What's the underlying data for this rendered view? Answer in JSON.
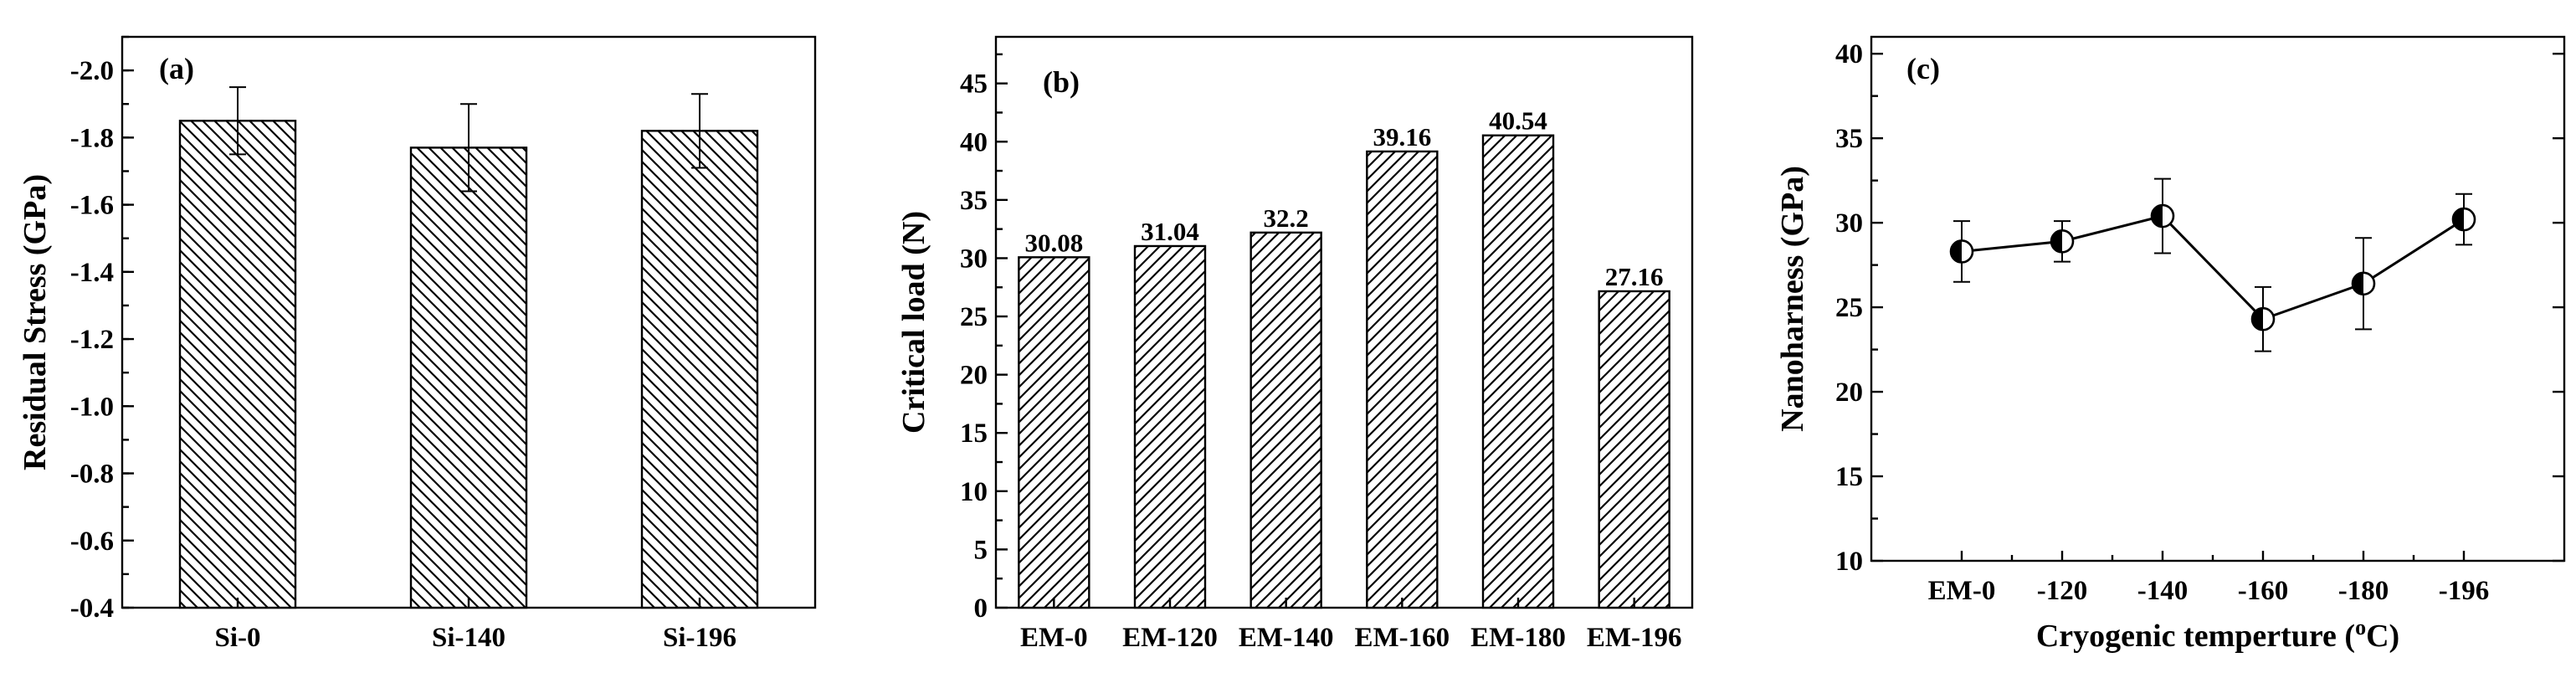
{
  "chart_data": [
    {
      "type": "bar",
      "panel_label": "(a)",
      "ylabel": "Residual Stress (GPa)",
      "xlabel": "",
      "categories": [
        "Si-0",
        "Si-140",
        "Si-196"
      ],
      "values": [
        -1.85,
        -1.77,
        -1.82
      ],
      "errors": [
        0.1,
        0.13,
        0.11
      ],
      "yticks": [
        "-2.0",
        "-1.8",
        "-1.6",
        "-1.4",
        "-1.2",
        "-1.0",
        "-0.8",
        "-0.6",
        "-0.4"
      ],
      "ylim": [
        -2.1,
        -0.4
      ],
      "axis_inverted": true,
      "hatch": "backslash",
      "grid": false
    },
    {
      "type": "bar",
      "panel_label": "(b)",
      "ylabel": "Critical load (N)",
      "xlabel": "",
      "categories": [
        "EM-0",
        "EM-120",
        "EM-140",
        "EM-160",
        "EM-180",
        "EM-196"
      ],
      "values": [
        30.08,
        31.04,
        32.2,
        39.16,
        40.54,
        27.16
      ],
      "value_labels": [
        "30.08",
        "31.04",
        "32.2",
        "39.16",
        "40.54",
        "27.16"
      ],
      "yticks": [
        "0",
        "5",
        "10",
        "15",
        "20",
        "25",
        "30",
        "35",
        "40",
        "45"
      ],
      "ylim": [
        0,
        49
      ],
      "hatch": "slash",
      "grid": false
    },
    {
      "type": "line",
      "panel_label": "(c)",
      "ylabel": "Nanoharness (GPa)",
      "xlabel": "Cryogenic temperture (°C)",
      "xlabel_main": "Cryogenic temperture (",
      "xlabel_sup": "o",
      "xlabel_end": "C)",
      "categories": [
        "EM-0",
        "-120",
        "-140",
        "-160",
        "-180",
        "-196"
      ],
      "values": [
        28.3,
        28.9,
        30.4,
        24.3,
        26.4,
        30.2
      ],
      "errors": [
        1.8,
        1.2,
        2.2,
        1.9,
        2.7,
        1.5
      ],
      "yticks": [
        "10",
        "15",
        "20",
        "25",
        "30",
        "35",
        "40"
      ],
      "ylim": [
        10,
        41
      ],
      "marker": "half-filled-circle",
      "grid": false
    }
  ]
}
